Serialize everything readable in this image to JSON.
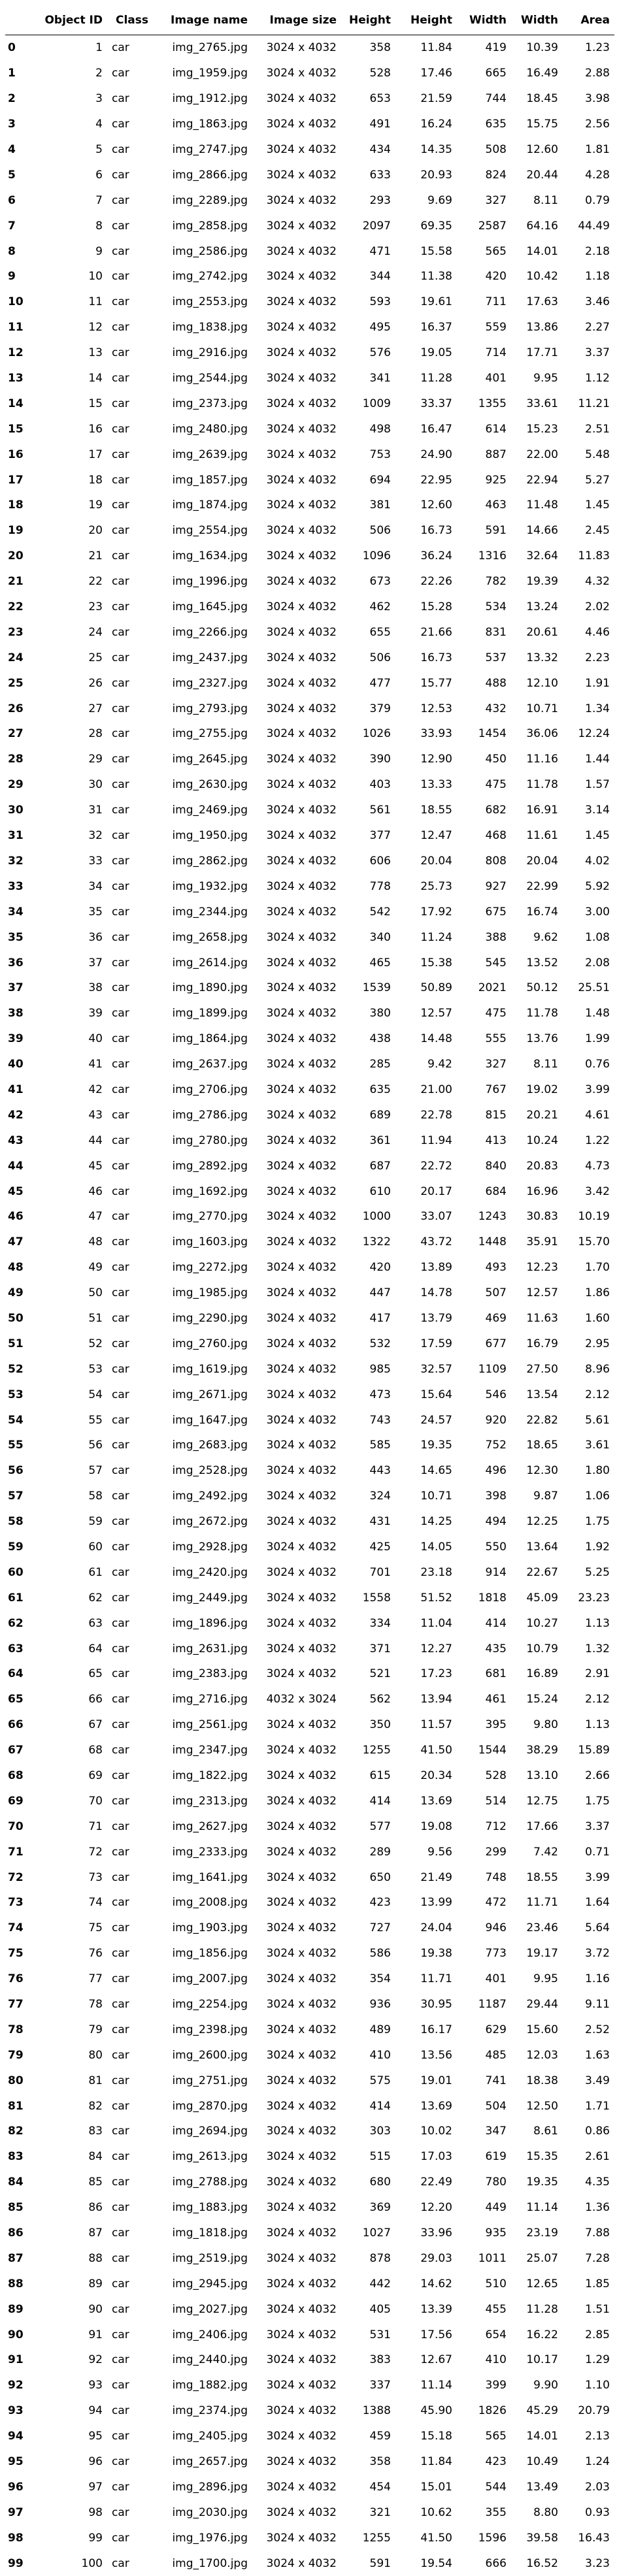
{
  "columns": [
    "",
    "Object ID",
    "Class",
    "Image name",
    "Image size",
    "Height",
    "Height",
    "Width",
    "Width",
    "Area"
  ],
  "rows": [
    [
      "0",
      "1",
      "car",
      "img_2765.jpg",
      "3024 x 4032",
      "358",
      "11.84",
      "419",
      "10.39",
      "1.23"
    ],
    [
      "1",
      "2",
      "car",
      "img_1959.jpg",
      "3024 x 4032",
      "528",
      "17.46",
      "665",
      "16.49",
      "2.88"
    ],
    [
      "2",
      "3",
      "car",
      "img_1912.jpg",
      "3024 x 4032",
      "653",
      "21.59",
      "744",
      "18.45",
      "3.98"
    ],
    [
      "3",
      "4",
      "car",
      "img_1863.jpg",
      "3024 x 4032",
      "491",
      "16.24",
      "635",
      "15.75",
      "2.56"
    ],
    [
      "4",
      "5",
      "car",
      "img_2747.jpg",
      "3024 x 4032",
      "434",
      "14.35",
      "508",
      "12.60",
      "1.81"
    ],
    [
      "5",
      "6",
      "car",
      "img_2866.jpg",
      "3024 x 4032",
      "633",
      "20.93",
      "824",
      "20.44",
      "4.28"
    ],
    [
      "6",
      "7",
      "car",
      "img_2289.jpg",
      "3024 x 4032",
      "293",
      "9.69",
      "327",
      "8.11",
      "0.79"
    ],
    [
      "7",
      "8",
      "car",
      "img_2858.jpg",
      "3024 x 4032",
      "2097",
      "69.35",
      "2587",
      "64.16",
      "44.49"
    ],
    [
      "8",
      "9",
      "car",
      "img_2586.jpg",
      "3024 x 4032",
      "471",
      "15.58",
      "565",
      "14.01",
      "2.18"
    ],
    [
      "9",
      "10",
      "car",
      "img_2742.jpg",
      "3024 x 4032",
      "344",
      "11.38",
      "420",
      "10.42",
      "1.18"
    ],
    [
      "10",
      "11",
      "car",
      "img_2553.jpg",
      "3024 x 4032",
      "593",
      "19.61",
      "711",
      "17.63",
      "3.46"
    ],
    [
      "11",
      "12",
      "car",
      "img_1838.jpg",
      "3024 x 4032",
      "495",
      "16.37",
      "559",
      "13.86",
      "2.27"
    ],
    [
      "12",
      "13",
      "car",
      "img_2916.jpg",
      "3024 x 4032",
      "576",
      "19.05",
      "714",
      "17.71",
      "3.37"
    ],
    [
      "13",
      "14",
      "car",
      "img_2544.jpg",
      "3024 x 4032",
      "341",
      "11.28",
      "401",
      "9.95",
      "1.12"
    ],
    [
      "14",
      "15",
      "car",
      "img_2373.jpg",
      "3024 x 4032",
      "1009",
      "33.37",
      "1355",
      "33.61",
      "11.21"
    ],
    [
      "15",
      "16",
      "car",
      "img_2480.jpg",
      "3024 x 4032",
      "498",
      "16.47",
      "614",
      "15.23",
      "2.51"
    ],
    [
      "16",
      "17",
      "car",
      "img_2639.jpg",
      "3024 x 4032",
      "753",
      "24.90",
      "887",
      "22.00",
      "5.48"
    ],
    [
      "17",
      "18",
      "car",
      "img_1857.jpg",
      "3024 x 4032",
      "694",
      "22.95",
      "925",
      "22.94",
      "5.27"
    ],
    [
      "18",
      "19",
      "car",
      "img_1874.jpg",
      "3024 x 4032",
      "381",
      "12.60",
      "463",
      "11.48",
      "1.45"
    ],
    [
      "19",
      "20",
      "car",
      "img_2554.jpg",
      "3024 x 4032",
      "506",
      "16.73",
      "591",
      "14.66",
      "2.45"
    ],
    [
      "20",
      "21",
      "car",
      "img_1634.jpg",
      "3024 x 4032",
      "1096",
      "36.24",
      "1316",
      "32.64",
      "11.83"
    ],
    [
      "21",
      "22",
      "car",
      "img_1996.jpg",
      "3024 x 4032",
      "673",
      "22.26",
      "782",
      "19.39",
      "4.32"
    ],
    [
      "22",
      "23",
      "car",
      "img_1645.jpg",
      "3024 x 4032",
      "462",
      "15.28",
      "534",
      "13.24",
      "2.02"
    ],
    [
      "23",
      "24",
      "car",
      "img_2266.jpg",
      "3024 x 4032",
      "655",
      "21.66",
      "831",
      "20.61",
      "4.46"
    ],
    [
      "24",
      "25",
      "car",
      "img_2437.jpg",
      "3024 x 4032",
      "506",
      "16.73",
      "537",
      "13.32",
      "2.23"
    ],
    [
      "25",
      "26",
      "car",
      "img_2327.jpg",
      "3024 x 4032",
      "477",
      "15.77",
      "488",
      "12.10",
      "1.91"
    ],
    [
      "26",
      "27",
      "car",
      "img_2793.jpg",
      "3024 x 4032",
      "379",
      "12.53",
      "432",
      "10.71",
      "1.34"
    ],
    [
      "27",
      "28",
      "car",
      "img_2755.jpg",
      "3024 x 4032",
      "1026",
      "33.93",
      "1454",
      "36.06",
      "12.24"
    ],
    [
      "28",
      "29",
      "car",
      "img_2645.jpg",
      "3024 x 4032",
      "390",
      "12.90",
      "450",
      "11.16",
      "1.44"
    ],
    [
      "29",
      "30",
      "car",
      "img_2630.jpg",
      "3024 x 4032",
      "403",
      "13.33",
      "475",
      "11.78",
      "1.57"
    ],
    [
      "30",
      "31",
      "car",
      "img_2469.jpg",
      "3024 x 4032",
      "561",
      "18.55",
      "682",
      "16.91",
      "3.14"
    ],
    [
      "31",
      "32",
      "car",
      "img_1950.jpg",
      "3024 x 4032",
      "377",
      "12.47",
      "468",
      "11.61",
      "1.45"
    ],
    [
      "32",
      "33",
      "car",
      "img_2862.jpg",
      "3024 x 4032",
      "606",
      "20.04",
      "808",
      "20.04",
      "4.02"
    ],
    [
      "33",
      "34",
      "car",
      "img_1932.jpg",
      "3024 x 4032",
      "778",
      "25.73",
      "927",
      "22.99",
      "5.92"
    ],
    [
      "34",
      "35",
      "car",
      "img_2344.jpg",
      "3024 x 4032",
      "542",
      "17.92",
      "675",
      "16.74",
      "3.00"
    ],
    [
      "35",
      "36",
      "car",
      "img_2658.jpg",
      "3024 x 4032",
      "340",
      "11.24",
      "388",
      "9.62",
      "1.08"
    ],
    [
      "36",
      "37",
      "car",
      "img_2614.jpg",
      "3024 x 4032",
      "465",
      "15.38",
      "545",
      "13.52",
      "2.08"
    ],
    [
      "37",
      "38",
      "car",
      "img_1890.jpg",
      "3024 x 4032",
      "1539",
      "50.89",
      "2021",
      "50.12",
      "25.51"
    ],
    [
      "38",
      "39",
      "car",
      "img_1899.jpg",
      "3024 x 4032",
      "380",
      "12.57",
      "475",
      "11.78",
      "1.48"
    ],
    [
      "39",
      "40",
      "car",
      "img_1864.jpg",
      "3024 x 4032",
      "438",
      "14.48",
      "555",
      "13.76",
      "1.99"
    ],
    [
      "40",
      "41",
      "car",
      "img_2637.jpg",
      "3024 x 4032",
      "285",
      "9.42",
      "327",
      "8.11",
      "0.76"
    ],
    [
      "41",
      "42",
      "car",
      "img_2706.jpg",
      "3024 x 4032",
      "635",
      "21.00",
      "767",
      "19.02",
      "3.99"
    ],
    [
      "42",
      "43",
      "car",
      "img_2786.jpg",
      "3024 x 4032",
      "689",
      "22.78",
      "815",
      "20.21",
      "4.61"
    ],
    [
      "43",
      "44",
      "car",
      "img_2780.jpg",
      "3024 x 4032",
      "361",
      "11.94",
      "413",
      "10.24",
      "1.22"
    ],
    [
      "44",
      "45",
      "car",
      "img_2892.jpg",
      "3024 x 4032",
      "687",
      "22.72",
      "840",
      "20.83",
      "4.73"
    ],
    [
      "45",
      "46",
      "car",
      "img_1692.jpg",
      "3024 x 4032",
      "610",
      "20.17",
      "684",
      "16.96",
      "3.42"
    ],
    [
      "46",
      "47",
      "car",
      "img_2770.jpg",
      "3024 x 4032",
      "1000",
      "33.07",
      "1243",
      "30.83",
      "10.19"
    ],
    [
      "47",
      "48",
      "car",
      "img_1603.jpg",
      "3024 x 4032",
      "1322",
      "43.72",
      "1448",
      "35.91",
      "15.70"
    ],
    [
      "48",
      "49",
      "car",
      "img_2272.jpg",
      "3024 x 4032",
      "420",
      "13.89",
      "493",
      "12.23",
      "1.70"
    ],
    [
      "49",
      "50",
      "car",
      "img_1985.jpg",
      "3024 x 4032",
      "447",
      "14.78",
      "507",
      "12.57",
      "1.86"
    ],
    [
      "50",
      "51",
      "car",
      "img_2290.jpg",
      "3024 x 4032",
      "417",
      "13.79",
      "469",
      "11.63",
      "1.60"
    ],
    [
      "51",
      "52",
      "car",
      "img_2760.jpg",
      "3024 x 4032",
      "532",
      "17.59",
      "677",
      "16.79",
      "2.95"
    ],
    [
      "52",
      "53",
      "car",
      "img_1619.jpg",
      "3024 x 4032",
      "985",
      "32.57",
      "1109",
      "27.50",
      "8.96"
    ],
    [
      "53",
      "54",
      "car",
      "img_2671.jpg",
      "3024 x 4032",
      "473",
      "15.64",
      "546",
      "13.54",
      "2.12"
    ],
    [
      "54",
      "55",
      "car",
      "img_1647.jpg",
      "3024 x 4032",
      "743",
      "24.57",
      "920",
      "22.82",
      "5.61"
    ],
    [
      "55",
      "56",
      "car",
      "img_2683.jpg",
      "3024 x 4032",
      "585",
      "19.35",
      "752",
      "18.65",
      "3.61"
    ],
    [
      "56",
      "57",
      "car",
      "img_2528.jpg",
      "3024 x 4032",
      "443",
      "14.65",
      "496",
      "12.30",
      "1.80"
    ],
    [
      "57",
      "58",
      "car",
      "img_2492.jpg",
      "3024 x 4032",
      "324",
      "10.71",
      "398",
      "9.87",
      "1.06"
    ],
    [
      "58",
      "59",
      "car",
      "img_2672.jpg",
      "3024 x 4032",
      "431",
      "14.25",
      "494",
      "12.25",
      "1.75"
    ],
    [
      "59",
      "60",
      "car",
      "img_2928.jpg",
      "3024 x 4032",
      "425",
      "14.05",
      "550",
      "13.64",
      "1.92"
    ],
    [
      "60",
      "61",
      "car",
      "img_2420.jpg",
      "3024 x 4032",
      "701",
      "23.18",
      "914",
      "22.67",
      "5.25"
    ],
    [
      "61",
      "62",
      "car",
      "img_2449.jpg",
      "3024 x 4032",
      "1558",
      "51.52",
      "1818",
      "45.09",
      "23.23"
    ],
    [
      "62",
      "63",
      "car",
      "img_1896.jpg",
      "3024 x 4032",
      "334",
      "11.04",
      "414",
      "10.27",
      "1.13"
    ],
    [
      "63",
      "64",
      "car",
      "img_2631.jpg",
      "3024 x 4032",
      "371",
      "12.27",
      "435",
      "10.79",
      "1.32"
    ],
    [
      "64",
      "65",
      "car",
      "img_2383.jpg",
      "3024 x 4032",
      "521",
      "17.23",
      "681",
      "16.89",
      "2.91"
    ],
    [
      "65",
      "66",
      "car",
      "img_2716.jpg",
      "4032 x 3024",
      "562",
      "13.94",
      "461",
      "15.24",
      "2.12"
    ],
    [
      "66",
      "67",
      "car",
      "img_2561.jpg",
      "3024 x 4032",
      "350",
      "11.57",
      "395",
      "9.80",
      "1.13"
    ],
    [
      "67",
      "68",
      "car",
      "img_2347.jpg",
      "3024 x 4032",
      "1255",
      "41.50",
      "1544",
      "38.29",
      "15.89"
    ],
    [
      "68",
      "69",
      "car",
      "img_1822.jpg",
      "3024 x 4032",
      "615",
      "20.34",
      "528",
      "13.10",
      "2.66"
    ],
    [
      "69",
      "70",
      "car",
      "img_2313.jpg",
      "3024 x 4032",
      "414",
      "13.69",
      "514",
      "12.75",
      "1.75"
    ],
    [
      "70",
      "71",
      "car",
      "img_2627.jpg",
      "3024 x 4032",
      "577",
      "19.08",
      "712",
      "17.66",
      "3.37"
    ],
    [
      "71",
      "72",
      "car",
      "img_2333.jpg",
      "3024 x 4032",
      "289",
      "9.56",
      "299",
      "7.42",
      "0.71"
    ],
    [
      "72",
      "73",
      "car",
      "img_1641.jpg",
      "3024 x 4032",
      "650",
      "21.49",
      "748",
      "18.55",
      "3.99"
    ],
    [
      "73",
      "74",
      "car",
      "img_2008.jpg",
      "3024 x 4032",
      "423",
      "13.99",
      "472",
      "11.71",
      "1.64"
    ],
    [
      "74",
      "75",
      "car",
      "img_1903.jpg",
      "3024 x 4032",
      "727",
      "24.04",
      "946",
      "23.46",
      "5.64"
    ],
    [
      "75",
      "76",
      "car",
      "img_1856.jpg",
      "3024 x 4032",
      "586",
      "19.38",
      "773",
      "19.17",
      "3.72"
    ],
    [
      "76",
      "77",
      "car",
      "img_2007.jpg",
      "3024 x 4032",
      "354",
      "11.71",
      "401",
      "9.95",
      "1.16"
    ],
    [
      "77",
      "78",
      "car",
      "img_2254.jpg",
      "3024 x 4032",
      "936",
      "30.95",
      "1187",
      "29.44",
      "9.11"
    ],
    [
      "78",
      "79",
      "car",
      "img_2398.jpg",
      "3024 x 4032",
      "489",
      "16.17",
      "629",
      "15.60",
      "2.52"
    ],
    [
      "79",
      "80",
      "car",
      "img_2600.jpg",
      "3024 x 4032",
      "410",
      "13.56",
      "485",
      "12.03",
      "1.63"
    ],
    [
      "80",
      "81",
      "car",
      "img_2751.jpg",
      "3024 x 4032",
      "575",
      "19.01",
      "741",
      "18.38",
      "3.49"
    ],
    [
      "81",
      "82",
      "car",
      "img_2870.jpg",
      "3024 x 4032",
      "414",
      "13.69",
      "504",
      "12.50",
      "1.71"
    ],
    [
      "82",
      "83",
      "car",
      "img_2694.jpg",
      "3024 x 4032",
      "303",
      "10.02",
      "347",
      "8.61",
      "0.86"
    ],
    [
      "83",
      "84",
      "car",
      "img_2613.jpg",
      "3024 x 4032",
      "515",
      "17.03",
      "619",
      "15.35",
      "2.61"
    ],
    [
      "84",
      "85",
      "car",
      "img_2788.jpg",
      "3024 x 4032",
      "680",
      "22.49",
      "780",
      "19.35",
      "4.35"
    ],
    [
      "85",
      "86",
      "car",
      "img_1883.jpg",
      "3024 x 4032",
      "369",
      "12.20",
      "449",
      "11.14",
      "1.36"
    ],
    [
      "86",
      "87",
      "car",
      "img_1818.jpg",
      "3024 x 4032",
      "1027",
      "33.96",
      "935",
      "23.19",
      "7.88"
    ],
    [
      "87",
      "88",
      "car",
      "img_2519.jpg",
      "3024 x 4032",
      "878",
      "29.03",
      "1011",
      "25.07",
      "7.28"
    ],
    [
      "88",
      "89",
      "car",
      "img_2945.jpg",
      "3024 x 4032",
      "442",
      "14.62",
      "510",
      "12.65",
      "1.85"
    ],
    [
      "89",
      "90",
      "car",
      "img_2027.jpg",
      "3024 x 4032",
      "405",
      "13.39",
      "455",
      "11.28",
      "1.51"
    ],
    [
      "90",
      "91",
      "car",
      "img_2406.jpg",
      "3024 x 4032",
      "531",
      "17.56",
      "654",
      "16.22",
      "2.85"
    ],
    [
      "91",
      "92",
      "car",
      "img_2440.jpg",
      "3024 x 4032",
      "383",
      "12.67",
      "410",
      "10.17",
      "1.29"
    ],
    [
      "92",
      "93",
      "car",
      "img_1882.jpg",
      "3024 x 4032",
      "337",
      "11.14",
      "399",
      "9.90",
      "1.10"
    ],
    [
      "93",
      "94",
      "car",
      "img_2374.jpg",
      "3024 x 4032",
      "1388",
      "45.90",
      "1826",
      "45.29",
      "20.79"
    ],
    [
      "94",
      "95",
      "car",
      "img_2405.jpg",
      "3024 x 4032",
      "459",
      "15.18",
      "565",
      "14.01",
      "2.13"
    ],
    [
      "95",
      "96",
      "car",
      "img_2657.jpg",
      "3024 x 4032",
      "358",
      "11.84",
      "423",
      "10.49",
      "1.24"
    ],
    [
      "96",
      "97",
      "car",
      "img_2896.jpg",
      "3024 x 4032",
      "454",
      "15.01",
      "544",
      "13.49",
      "2.03"
    ],
    [
      "97",
      "98",
      "car",
      "img_2030.jpg",
      "3024 x 4032",
      "321",
      "10.62",
      "355",
      "8.80",
      "0.93"
    ],
    [
      "98",
      "99",
      "car",
      "img_1976.jpg",
      "3024 x 4032",
      "1255",
      "41.50",
      "1596",
      "39.58",
      "16.43"
    ],
    [
      "99",
      "100",
      "car",
      "img_1700.jpg",
      "3024 x 4032",
      "591",
      "19.54",
      "666",
      "16.52",
      "3.23"
    ]
  ]
}
